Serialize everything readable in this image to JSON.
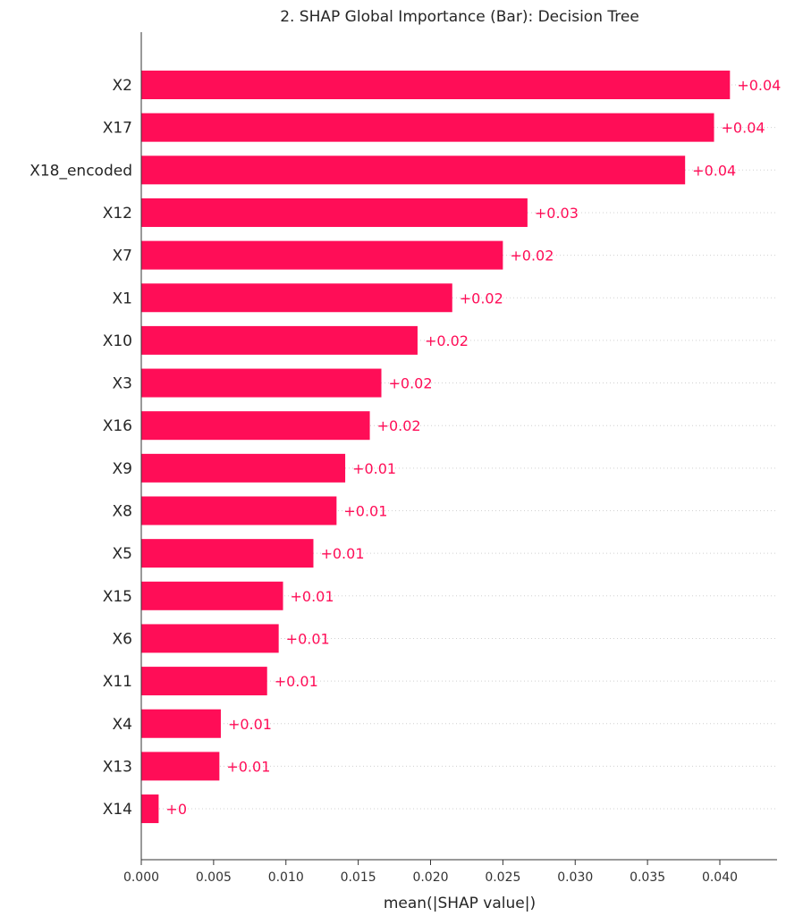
{
  "chart_data": {
    "type": "bar",
    "orientation": "horizontal",
    "title": "2. SHAP Global Importance (Bar): Decision Tree",
    "xlabel": "mean(|SHAP value|)",
    "ylabel": "",
    "xlim": [
      0,
      0.045
    ],
    "xticks": [
      "0.000",
      "0.005",
      "0.010",
      "0.015",
      "0.020",
      "0.025",
      "0.030",
      "0.035",
      "0.040"
    ],
    "grid": "dotted horizontal guide per bar",
    "bar_color": "#ff0d57",
    "categories": [
      "X2",
      "X17",
      "X18_encoded",
      "X12",
      "X7",
      "X1",
      "X10",
      "X3",
      "X16",
      "X9",
      "X8",
      "X5",
      "X15",
      "X6",
      "X11",
      "X4",
      "X13",
      "X14"
    ],
    "values": [
      0.0407,
      0.0396,
      0.0376,
      0.0267,
      0.025,
      0.0215,
      0.0191,
      0.0166,
      0.0158,
      0.0141,
      0.0135,
      0.0119,
      0.0098,
      0.0095,
      0.0087,
      0.0055,
      0.0054,
      0.0012
    ],
    "value_labels": [
      "+0.04",
      "+0.04",
      "+0.04",
      "+0.03",
      "+0.02",
      "+0.02",
      "+0.02",
      "+0.02",
      "+0.02",
      "+0.01",
      "+0.01",
      "+0.01",
      "+0.01",
      "+0.01",
      "+0.01",
      "+0.01",
      "+0.01",
      "+0"
    ]
  }
}
